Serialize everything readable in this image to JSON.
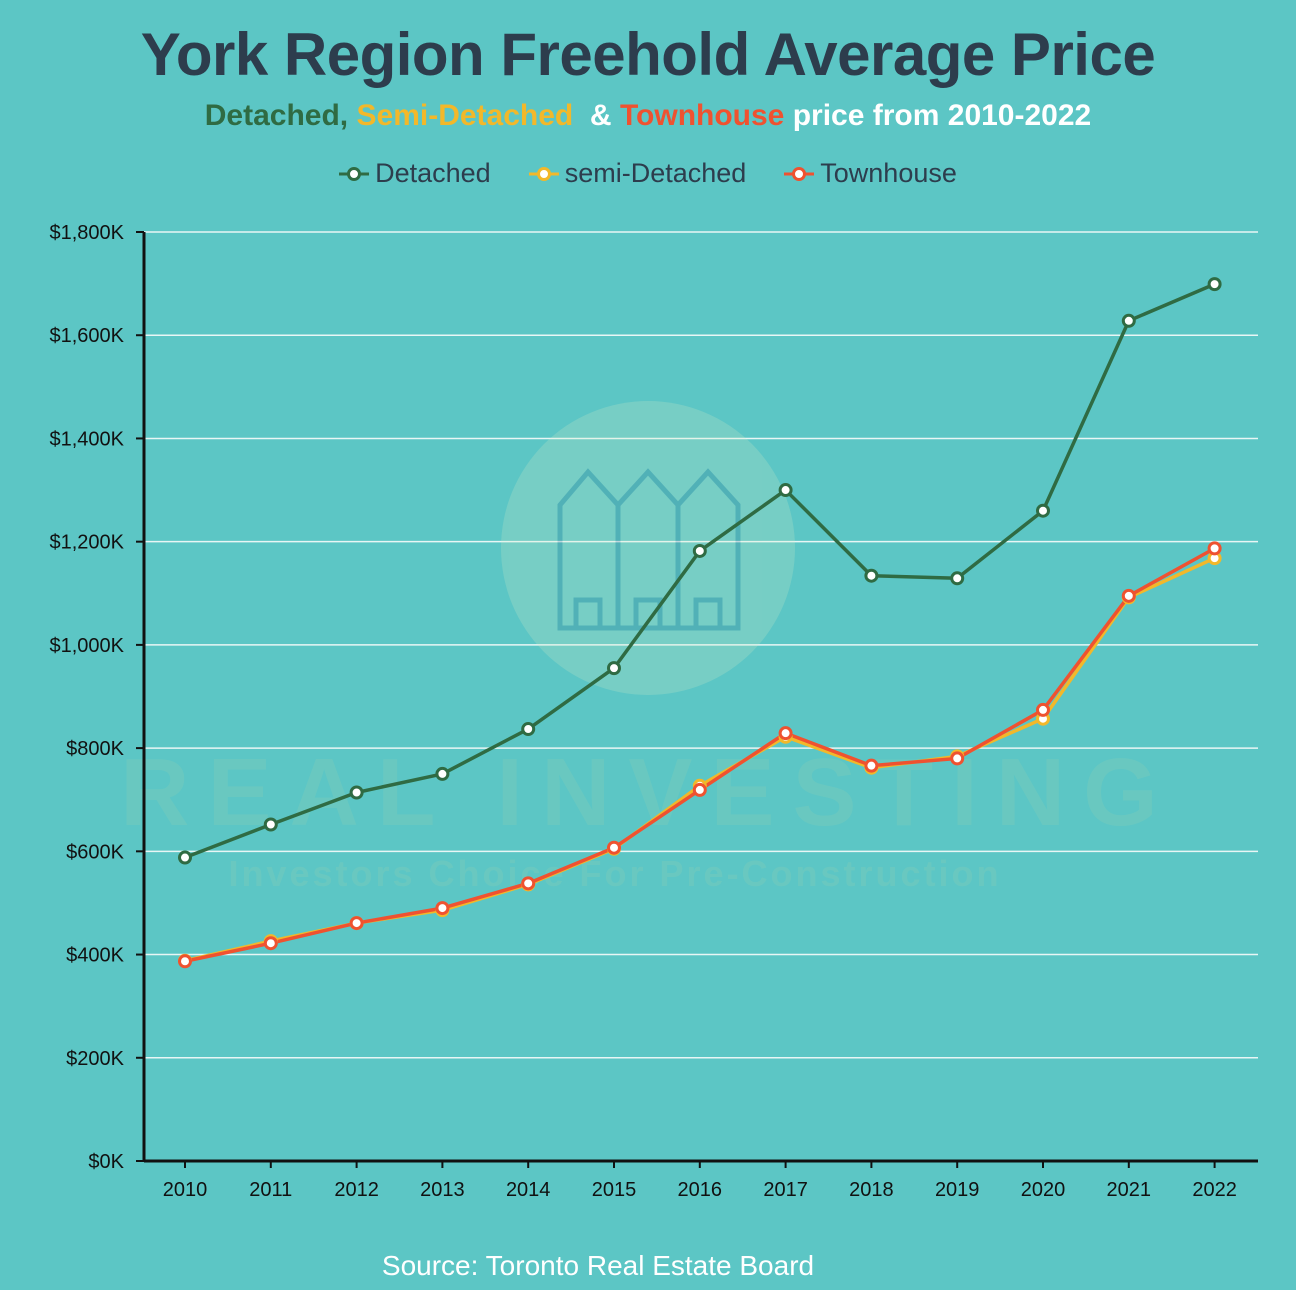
{
  "title": "York Region Freehold Average Price",
  "subtitle": {
    "detached": "Detached,",
    "semi": "Semi-Detached",
    "amp": " & ",
    "townhouse": "Townhouse",
    "rest": "price from 2010-2022"
  },
  "source": "Source: Toronto Real Estate Board",
  "watermark": {
    "brand": "REAL INVESTING",
    "tagline": "Investors Choice For Pre-Construction"
  },
  "colors": {
    "background": "#5cc6c5",
    "detached": "#2f6b43",
    "semi": "#f2b82a",
    "townhouse": "#ef5230",
    "title": "#2d3d4d"
  },
  "chart_data": {
    "type": "line",
    "x": [
      "2010",
      "2011",
      "2012",
      "2013",
      "2014",
      "2015",
      "2016",
      "2017",
      "2018",
      "2019",
      "2020",
      "2021",
      "2022"
    ],
    "ylim": [
      0,
      1800
    ],
    "yticks": [
      0,
      200,
      400,
      600,
      800,
      1000,
      1200,
      1400,
      1600,
      1800
    ],
    "ytick_labels": [
      "$0K",
      "$200K",
      "$400K",
      "$600K",
      "$800K",
      "$1,000K",
      "$1,200K",
      "$1,400K",
      "$1,600K",
      "$1,800K"
    ],
    "grid": true,
    "legend_position": "top-center",
    "series": [
      {
        "name": "Detached",
        "color": "#2f6b43",
        "values": [
          588,
          652,
          714,
          750,
          837,
          955,
          1182,
          1300,
          1134,
          1129,
          1260,
          1628,
          1699
        ]
      },
      {
        "name": "semi-Detached",
        "color": "#f2b82a",
        "values": [
          388,
          426,
          461,
          486,
          536,
          605,
          727,
          822,
          762,
          784,
          857,
          1092,
          1168
        ]
      },
      {
        "name": "Townhouse",
        "color": "#ef5230",
        "values": [
          387,
          422,
          461,
          490,
          538,
          607,
          719,
          829,
          766,
          780,
          874,
          1095,
          1187
        ]
      }
    ]
  }
}
